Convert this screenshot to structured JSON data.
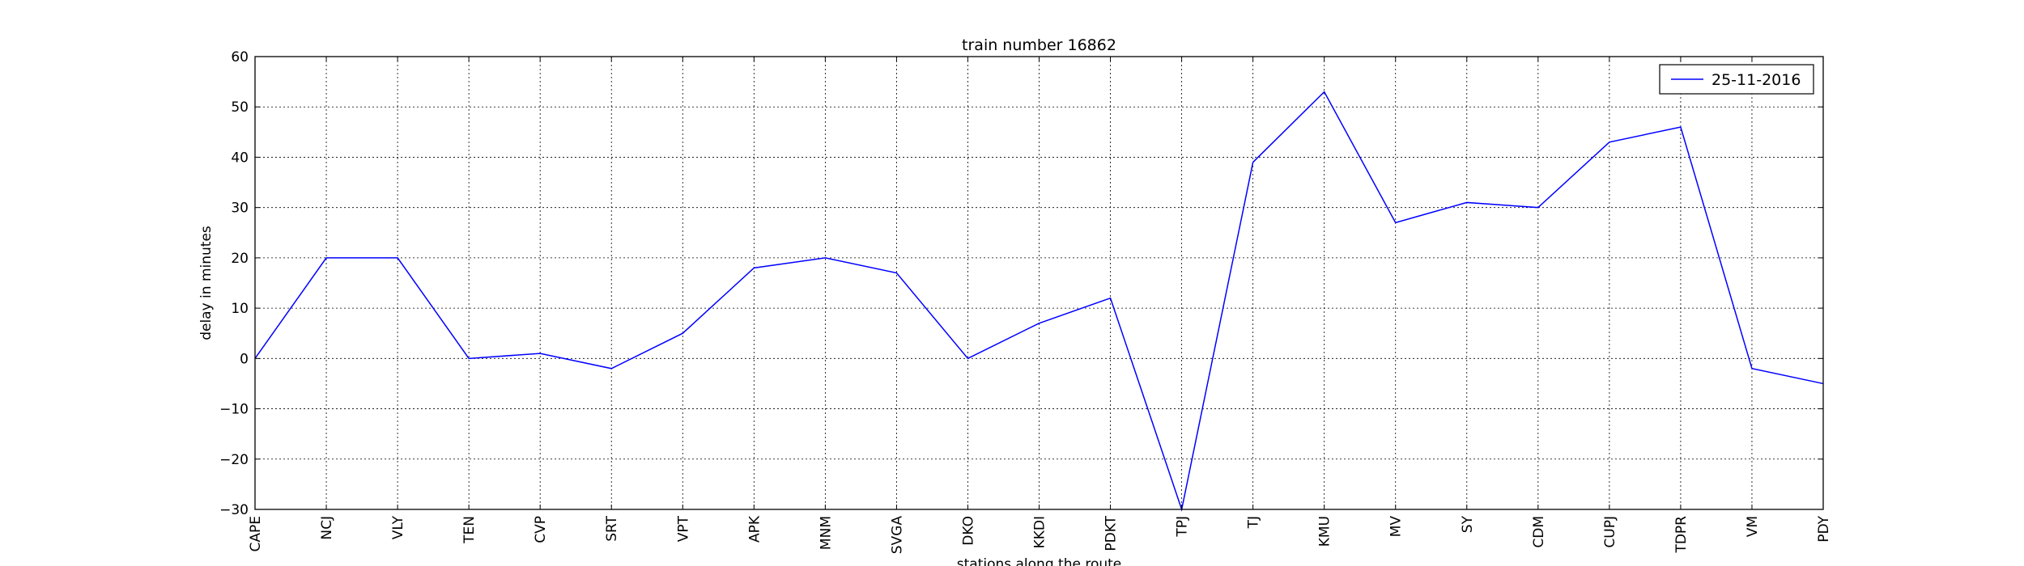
{
  "chart_data": {
    "type": "line",
    "title": "train number 16862",
    "xlabel": "stations along the route",
    "ylabel": "delay in minutes",
    "categories": [
      "CAPE",
      "NCJ",
      "VLY",
      "TEN",
      "CVP",
      "SRT",
      "VPT",
      "APK",
      "MNM",
      "SVGA",
      "DKO",
      "KKDI",
      "PDKT",
      "TPJ",
      "TJ",
      "KMU",
      "MV",
      "SY",
      "CDM",
      "CUPJ",
      "TDPR",
      "VM",
      "PDY"
    ],
    "series": [
      {
        "name": "25-11-2016",
        "color": "#0000ff",
        "values": [
          0,
          20,
          20,
          0,
          1,
          -2,
          5,
          18,
          20,
          17,
          0,
          7,
          12,
          -30,
          39,
          53,
          27,
          31,
          30,
          43,
          46,
          -2,
          -5
        ]
      }
    ],
    "ylim": [
      -30,
      60
    ],
    "yticks": [
      -30,
      -20,
      -10,
      0,
      10,
      20,
      30,
      40,
      50,
      60
    ],
    "ytick_labels": [
      "−30",
      "−20",
      "−10",
      "0",
      "10",
      "20",
      "30",
      "40",
      "50",
      "60"
    ],
    "grid": true,
    "legend_position": "top-right"
  }
}
